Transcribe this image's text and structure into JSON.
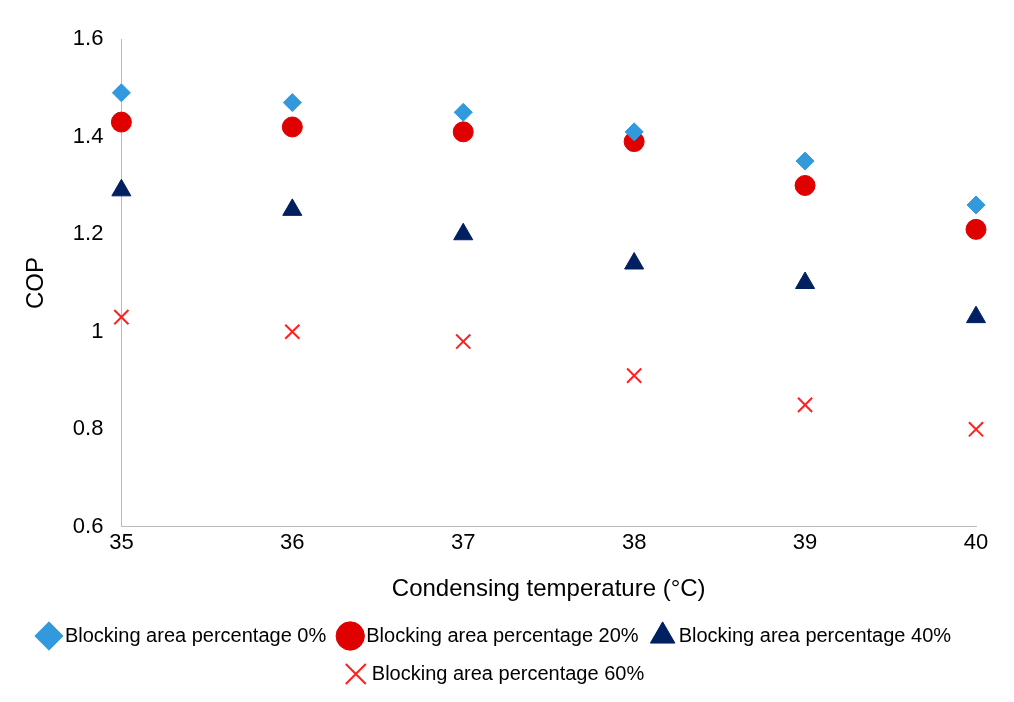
{
  "chart_data": {
    "type": "scatter",
    "xlabel": "Condensing temperature (°C)",
    "ylabel": "COP",
    "x": [
      35,
      36,
      37,
      38,
      39,
      40
    ],
    "xlim": [
      35,
      40
    ],
    "xticks": [
      35,
      36,
      37,
      38,
      39,
      40
    ],
    "ylim": [
      0.6,
      1.6
    ],
    "yticks": [
      0.6,
      0.8,
      1,
      1.2,
      1.4,
      1.6
    ],
    "grid": false,
    "legend": "bottom",
    "series": [
      {
        "name": "Blocking area percentage 0%",
        "color": "#3399dd",
        "marker": "diamond",
        "values": [
          1.49,
          1.47,
          1.45,
          1.41,
          1.35,
          1.26
        ]
      },
      {
        "name": "Blocking area percentage 20%",
        "color": "#e00000",
        "marker": "circle",
        "values": [
          1.43,
          1.42,
          1.41,
          1.39,
          1.3,
          1.21
        ]
      },
      {
        "name": "Blocking area percentage 40%",
        "color": "#002060",
        "marker": "triangle",
        "values": [
          1.29,
          1.25,
          1.2,
          1.14,
          1.1,
          1.03
        ]
      },
      {
        "name": "Blocking area percentage 60%",
        "color": "#ff2020",
        "marker": "cross",
        "values": [
          1.03,
          1.0,
          0.98,
          0.91,
          0.85,
          0.8
        ]
      }
    ]
  }
}
